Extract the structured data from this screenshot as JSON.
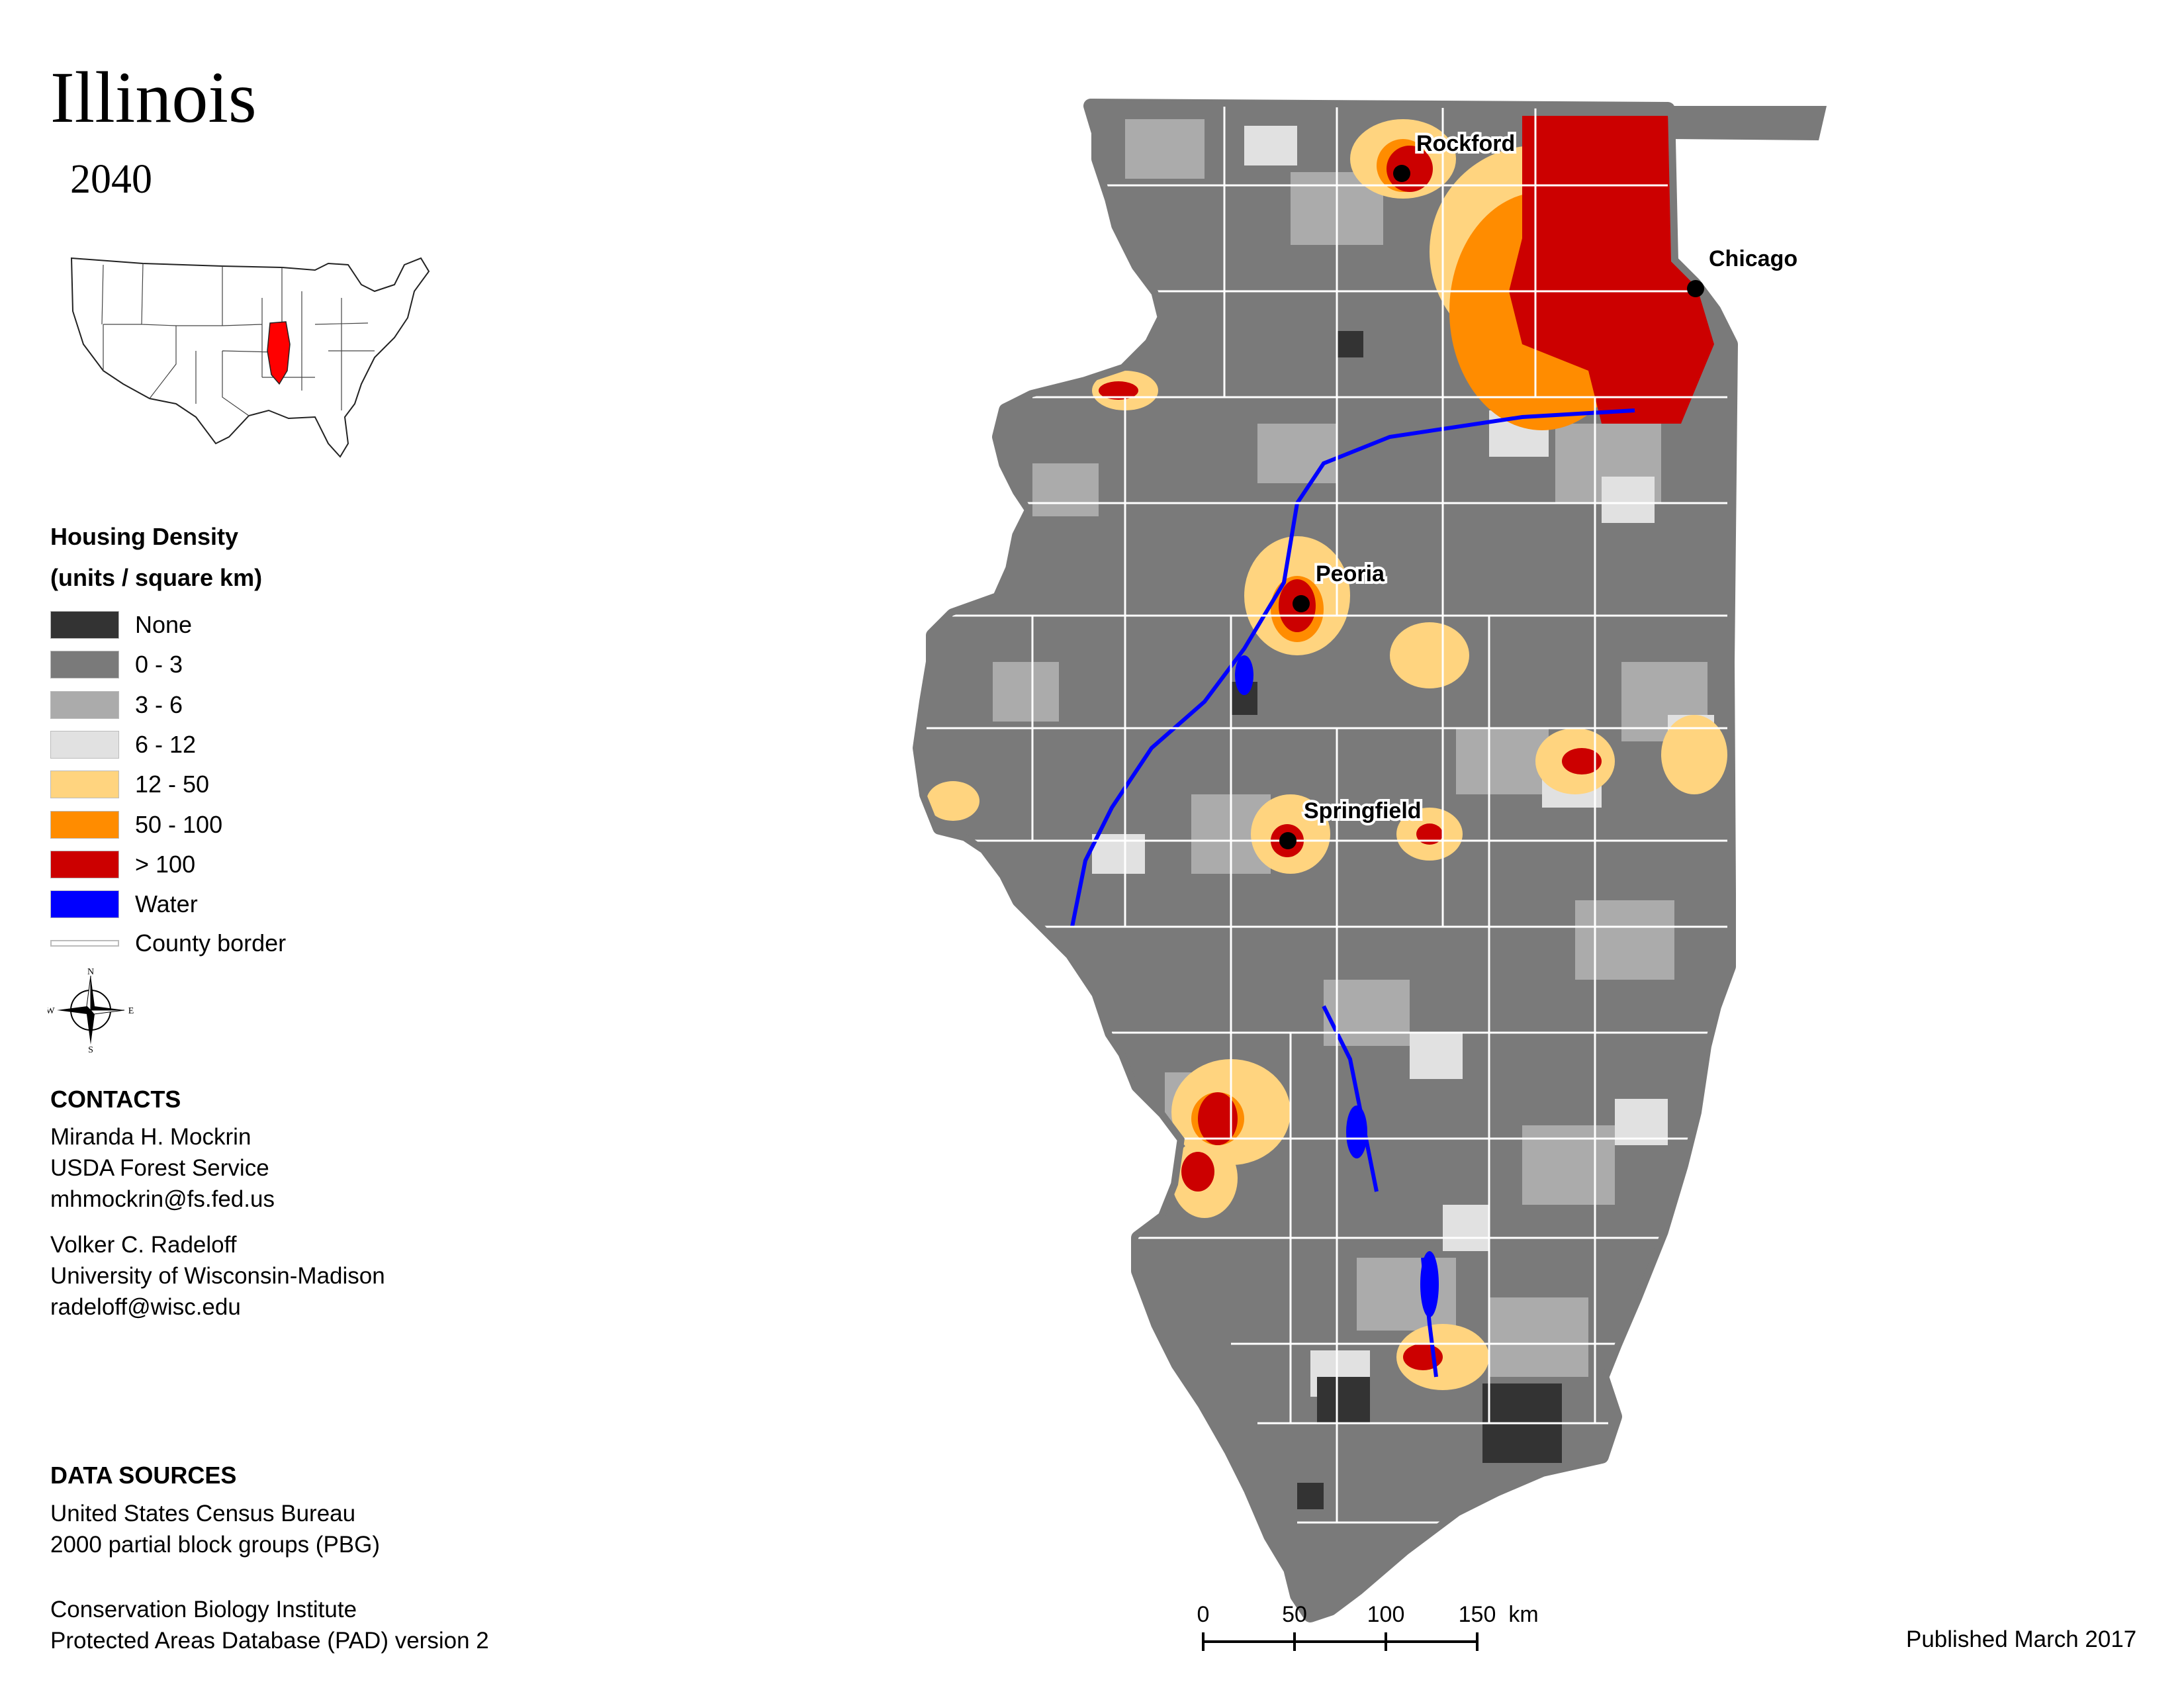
{
  "title": "Illinois",
  "subtitle": "2040",
  "legend": {
    "title_line1": "Housing Density",
    "title_line2": "(units / square km)",
    "items": [
      {
        "label": "None",
        "color": "#333333"
      },
      {
        "label": "0 - 3",
        "color": "#7a7a7a"
      },
      {
        "label": "3 - 6",
        "color": "#ababab"
      },
      {
        "label": "6 - 12",
        "color": "#e1e1e1"
      },
      {
        "label": "12 - 50",
        "color": "#ffd47f"
      },
      {
        "label": "50 - 100",
        "color": "#ff8c00"
      },
      {
        "label": "> 100",
        "color": "#cc0000"
      },
      {
        "label": "Water",
        "color": "#0000ff"
      },
      {
        "label": "County border",
        "color": "#cccccc"
      }
    ]
  },
  "compass": {
    "n": "N",
    "s": "S",
    "e": "E",
    "w": "W"
  },
  "contacts": {
    "heading": "CONTACTS",
    "people": [
      {
        "name": "Miranda H. Mockrin",
        "org": "USDA Forest Service",
        "email": "mhmockrin@fs.fed.us"
      },
      {
        "name": "Volker C. Radeloff",
        "org": "University of Wisconsin-Madison",
        "email": "radeloff@wisc.edu"
      }
    ]
  },
  "data_sources": {
    "heading": "DATA SOURCES",
    "lines": [
      "United States Census Bureau",
      "2000 partial block groups (PBG)",
      "Conservation Biology Institute",
      "Protected Areas Database (PAD) version 2"
    ]
  },
  "cities": [
    {
      "name": "Rockford"
    },
    {
      "name": "Chicago"
    },
    {
      "name": "Peoria"
    },
    {
      "name": "Springfield"
    }
  ],
  "scale_bar": {
    "ticks": [
      "0",
      "50",
      "100",
      "150"
    ],
    "unit": "km"
  },
  "published": "Published March 2017",
  "colors": {
    "none": "#333333",
    "low": "#7a7a7a",
    "mid": "#ababab",
    "light": "#e1e1e1",
    "suburb": "#ffd47f",
    "orange": "#ff8c00",
    "urban": "#cc0000",
    "water": "#0000ff",
    "highlight_state": "#ff0000"
  }
}
